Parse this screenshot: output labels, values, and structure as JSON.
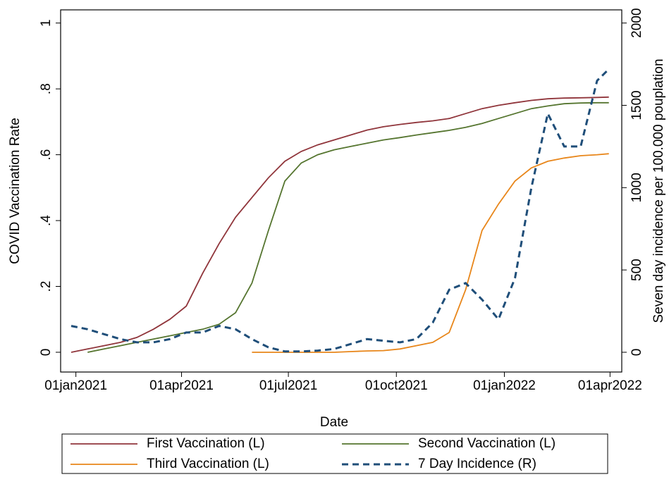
{
  "chart_data": {
    "type": "line",
    "x_label": "Date",
    "y_label": "COVID Vaccination Rate",
    "y2_label": "Seven day incidence per 100.000 pouplation",
    "x": [
      "2020-12-28",
      "2021-01-11",
      "2021-01-25",
      "2021-02-08",
      "2021-02-22",
      "2021-03-08",
      "2021-03-22",
      "2021-04-05",
      "2021-04-19",
      "2021-05-03",
      "2021-05-17",
      "2021-05-31",
      "2021-06-14",
      "2021-06-28",
      "2021-07-12",
      "2021-07-26",
      "2021-08-09",
      "2021-08-23",
      "2021-09-06",
      "2021-09-20",
      "2021-10-04",
      "2021-10-18",
      "2021-11-01",
      "2021-11-15",
      "2021-11-29",
      "2021-12-13",
      "2021-12-27",
      "2022-01-10",
      "2022-01-24",
      "2022-02-07",
      "2022-02-21",
      "2022-03-07",
      "2022-03-21",
      "2022-03-31"
    ],
    "xlim": [
      "2020-12-19",
      "2022-04-11"
    ],
    "xticks": [
      {
        "value": "2021-01-01",
        "label": "01jan2021"
      },
      {
        "value": "2021-04-01",
        "label": "01apr2021"
      },
      {
        "value": "2021-07-01",
        "label": "01jul2021"
      },
      {
        "value": "2021-10-01",
        "label": "01oct2021"
      },
      {
        "value": "2022-01-01",
        "label": "01jan2022"
      },
      {
        "value": "2022-04-01",
        "label": "01apr2022"
      }
    ],
    "ylim": [
      -0.06,
      1.04
    ],
    "yticks": [
      0,
      {
        "value": 0.2,
        "label": ".2"
      },
      {
        "value": 0.4,
        "label": ".4"
      },
      {
        "value": 0.6,
        "label": ".6"
      },
      {
        "value": 0.8,
        "label": ".8"
      },
      1
    ],
    "y2lim": [
      -120,
      2080
    ],
    "y2ticks": [
      0,
      500,
      1000,
      1500,
      2000
    ],
    "grid": false,
    "legend": "bottom",
    "series": [
      {
        "name": "First Vaccination (L)",
        "color": "#90353b",
        "style": "solid",
        "values": [
          0,
          0.01,
          0.02,
          0.03,
          0.045,
          0.07,
          0.1,
          0.14,
          0.24,
          0.33,
          0.41,
          0.47,
          0.53,
          0.58,
          0.61,
          0.63,
          0.645,
          0.66,
          0.675,
          0.685,
          0.692,
          0.698,
          0.703,
          0.71,
          0.725,
          0.74,
          0.75,
          0.758,
          0.765,
          0.77,
          0.772,
          0.773,
          0.774,
          0.775
        ]
      },
      {
        "name": "Second Vaccination (L)",
        "color": "#55752f",
        "style": "solid",
        "values": [
          null,
          0,
          0.01,
          0.02,
          0.03,
          0.04,
          0.05,
          0.06,
          0.07,
          0.085,
          0.12,
          0.21,
          0.37,
          0.52,
          0.575,
          0.6,
          0.615,
          0.625,
          0.635,
          0.645,
          0.652,
          0.66,
          0.667,
          0.674,
          0.683,
          0.695,
          0.71,
          0.725,
          0.74,
          0.748,
          0.755,
          0.757,
          0.758,
          0.758
        ]
      },
      {
        "name": "Third Vaccination (L)",
        "color": "#e8861a",
        "style": "solid",
        "values": [
          null,
          null,
          null,
          null,
          null,
          null,
          null,
          null,
          null,
          null,
          null,
          0,
          0,
          0,
          0,
          0,
          0,
          0.002,
          0.004,
          0.005,
          0.01,
          0.02,
          0.03,
          0.06,
          0.19,
          0.37,
          0.45,
          0.52,
          0.56,
          0.58,
          0.59,
          0.597,
          0.6,
          0.603
        ]
      },
      {
        "name": "7 Day Incidence (R)",
        "color": "#1f4e79",
        "style": "dash",
        "axis": "y2",
        "values": [
          160,
          140,
          110,
          80,
          60,
          60,
          80,
          120,
          120,
          160,
          140,
          80,
          30,
          5,
          5,
          10,
          20,
          50,
          80,
          70,
          60,
          80,
          180,
          380,
          420,
          320,
          200,
          450,
          1000,
          1450,
          1250,
          1250,
          1650,
          1720
        ]
      }
    ]
  }
}
